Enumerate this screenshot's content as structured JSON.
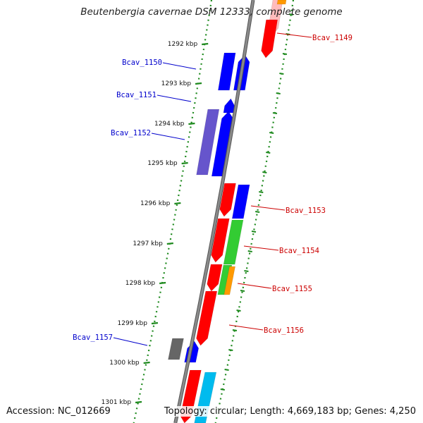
{
  "title": "Beutenbergia cavernae DSM 12333, complete genome",
  "accession": "Accession: NC_012669",
  "topology": "Topology: circular; Length: 4,669,183 bp; Genes: 4,250",
  "colors": {
    "backbone": "#8a8a8a",
    "ruler": "#1f8a1f",
    "label_left": "#0000cc",
    "label_right": "#cc0000",
    "red": "#ff0000",
    "blue": "#0000ff",
    "purple": "#6655cc",
    "green": "#33cc33",
    "orange": "#ff9900",
    "gray": "#666666",
    "cyan": "#00bbee",
    "pink": "#ffbbbb"
  },
  "ticks": [
    {
      "label": "1292 kbp"
    },
    {
      "label": "1293 kbp"
    },
    {
      "label": "1294 kbp"
    },
    {
      "label": "1295 kbp"
    },
    {
      "label": "1296 kbp"
    },
    {
      "label": "1297 kbp"
    },
    {
      "label": "1298 kbp"
    },
    {
      "label": "1299 kbp"
    },
    {
      "label": "1300 kbp"
    },
    {
      "label": "1301 kbp"
    }
  ],
  "gene_labels": [
    {
      "name": "Bcav_1149",
      "side": "right"
    },
    {
      "name": "Bcav_1150",
      "side": "left"
    },
    {
      "name": "Bcav_1151",
      "side": "left"
    },
    {
      "name": "Bcav_1152",
      "side": "left"
    },
    {
      "name": "Bcav_1153",
      "side": "right"
    },
    {
      "name": "Bcav_1154",
      "side": "right"
    },
    {
      "name": "Bcav_1155",
      "side": "right"
    },
    {
      "name": "Bcav_1156",
      "side": "right"
    },
    {
      "name": "Bcav_1157",
      "side": "left"
    }
  ]
}
